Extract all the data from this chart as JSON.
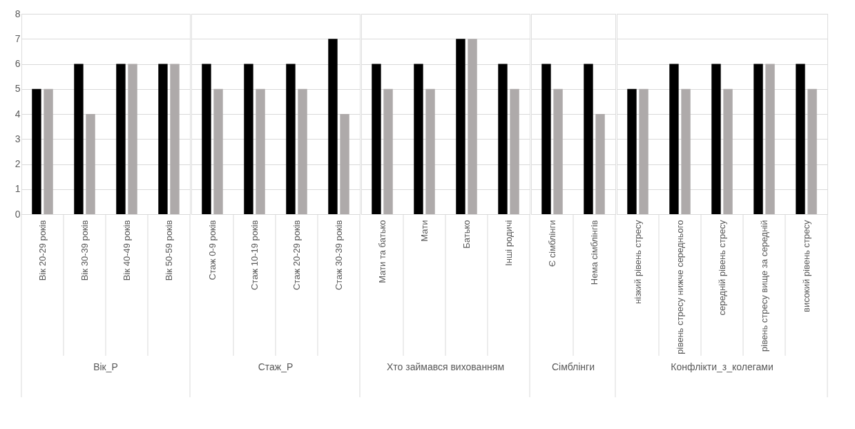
{
  "chart_data": [
    {
      "type": "bar",
      "xlabel": "Вік_Р",
      "categories": [
        "Вік 20-29 років",
        "Вік 30-39 років",
        "Вік 40-49 років",
        "Вік 50-59 років"
      ],
      "series": [
        {
          "color": "#000000",
          "values": [
            5,
            6,
            6,
            6
          ]
        },
        {
          "color": "#aeaaaa",
          "values": [
            5,
            4,
            6,
            6
          ]
        }
      ],
      "ylim": [
        0,
        8
      ],
      "yticks": [
        0,
        1,
        2,
        3,
        4,
        5,
        6,
        7,
        8
      ],
      "grid": "y"
    },
    {
      "type": "bar",
      "xlabel": "Стаж_Р",
      "categories": [
        "Стаж 0-9 років",
        "Стаж 10-19 років",
        "Стаж 20-29 років",
        "Стаж 30-39 років"
      ],
      "series": [
        {
          "color": "#000000",
          "values": [
            6,
            6,
            6,
            7
          ]
        },
        {
          "color": "#aeaaaa",
          "values": [
            5,
            5,
            5,
            4
          ]
        }
      ],
      "ylim": [
        0,
        8
      ],
      "yticks": [
        0,
        1,
        2,
        3,
        4,
        5,
        6,
        7,
        8
      ],
      "grid": "y",
      "tick_labels": "x"
    },
    {
      "type": "bar",
      "xlabel": "Хто займався вихованням",
      "categories": [
        "Мати та батько",
        "Мати",
        "Батько",
        "Інші родичі"
      ],
      "series": [
        {
          "color": "#000000",
          "values": [
            6,
            6,
            7,
            6
          ]
        },
        {
          "color": "#aeaaaa",
          "values": [
            5,
            5,
            7,
            5
          ]
        }
      ],
      "ylim": [
        0,
        8
      ],
      "yticks": [
        0,
        1,
        2,
        3,
        4,
        5,
        6,
        7,
        8
      ],
      "grid": "y",
      "tick_labels": "x"
    },
    {
      "type": "bar",
      "xlabel": "Сімблінги",
      "categories": [
        "Є сімблінги",
        "Нема сімблінгів"
      ],
      "series": [
        {
          "color": "#000000",
          "values": [
            6,
            6
          ]
        },
        {
          "color": "#aeaaaa",
          "values": [
            5,
            4
          ]
        }
      ],
      "ylim": [
        0,
        8
      ],
      "yticks": [
        0,
        1,
        2,
        3,
        4,
        5,
        6,
        7,
        8
      ],
      "grid": "y",
      "tick_labels": "x"
    },
    {
      "type": "bar",
      "xlabel": "Конфлікти_з_колегами",
      "categories": [
        "нізкий рівень стресу",
        "рівень стресу нижче середнього",
        "середній рівень стресу",
        "рівень стресу вище за середній",
        "високий рівень стресу"
      ],
      "series": [
        {
          "color": "#000000",
          "values": [
            5,
            6,
            6,
            6,
            6
          ]
        },
        {
          "color": "#aeaaaa",
          "values": [
            5,
            5,
            5,
            6,
            5
          ]
        }
      ],
      "ylim": [
        0,
        8
      ],
      "yticks": [
        0,
        1,
        2,
        3,
        4,
        5,
        6,
        7,
        8
      ],
      "grid": "y",
      "tick_labels": "x"
    }
  ]
}
